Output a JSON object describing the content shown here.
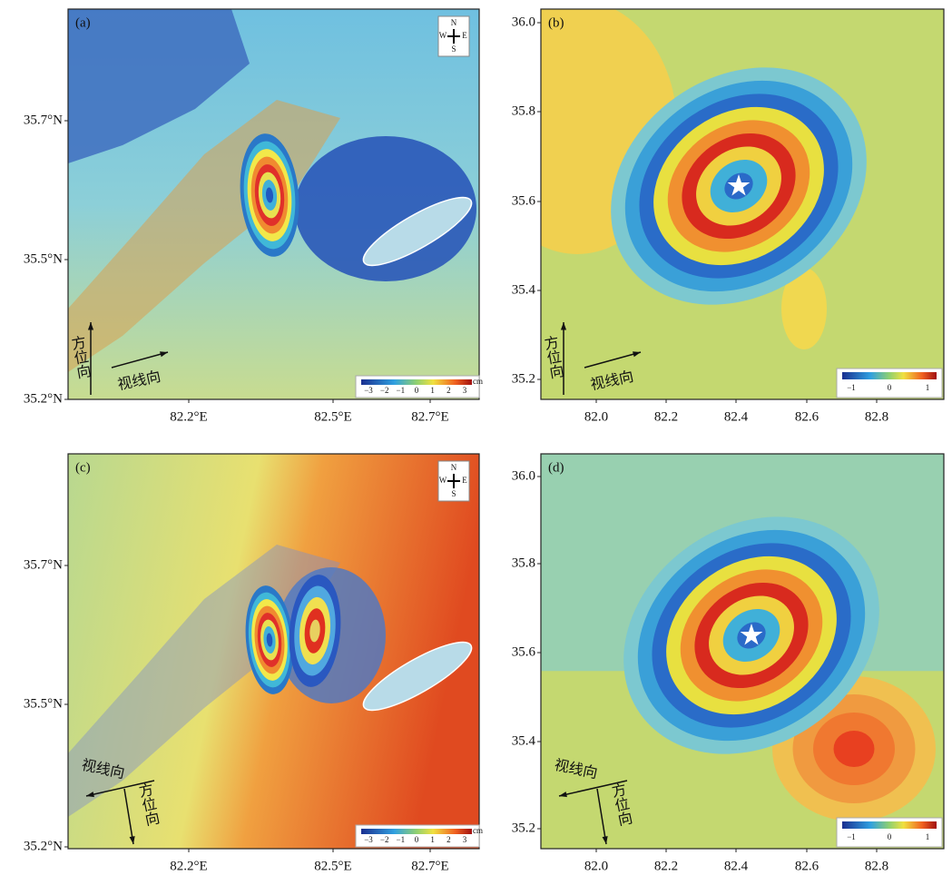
{
  "panels": [
    {
      "label": "(a)",
      "y_ticks": [
        "35.7°N",
        "35.5°N",
        "35.2°N"
      ],
      "x_ticks": [
        "82.2°E",
        "82.5°E",
        "82.7°E"
      ],
      "azimuth": "方位向",
      "line_of_sight": "视线向",
      "compass": {
        "n": "N",
        "s": "S",
        "w": "W",
        "e": "E"
      },
      "colorbar": {
        "ticks": [
          "−3",
          "−2",
          "−1",
          "0",
          "1",
          "2",
          "3"
        ],
        "unit": "cm"
      }
    },
    {
      "label": "(b)",
      "y_ticks": [
        "36.0",
        "35.8",
        "35.6",
        "35.4",
        "35.2"
      ],
      "x_ticks": [
        "82.0",
        "82.2",
        "82.4",
        "82.6",
        "82.8"
      ],
      "azimuth": "方位向",
      "line_of_sight": "视线向",
      "colorbar": {
        "ticks": [
          "−1",
          "0",
          "1"
        ]
      }
    },
    {
      "label": "(c)",
      "y_ticks": [
        "35.7°N",
        "35.5°N",
        "35.2°N"
      ],
      "x_ticks": [
        "82.2°E",
        "82.5°E",
        "82.7°E"
      ],
      "azimuth": "方位向",
      "line_of_sight": "视线向",
      "compass": {
        "n": "N",
        "s": "S",
        "w": "W",
        "e": "E"
      },
      "colorbar": {
        "ticks": [
          "−3",
          "−2",
          "−1",
          "0",
          "1",
          "2",
          "3"
        ],
        "unit": "cm"
      }
    },
    {
      "label": "(d)",
      "y_ticks": [
        "36.0",
        "35.8",
        "35.6",
        "35.4",
        "35.2"
      ],
      "x_ticks": [
        "82.0",
        "82.2",
        "82.4",
        "82.6",
        "82.8"
      ],
      "azimuth": "方位向",
      "line_of_sight": "视线向",
      "colorbar": {
        "ticks": [
          "−1",
          "0",
          "1"
        ]
      }
    }
  ]
}
